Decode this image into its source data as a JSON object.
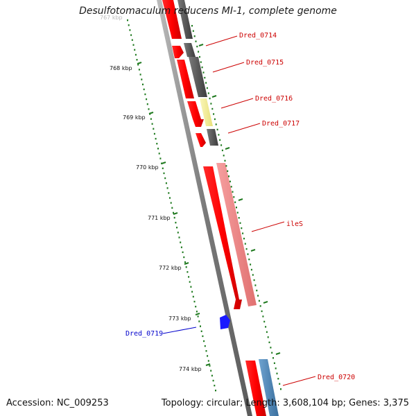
{
  "title": "Desulfotomaculum reducens MI-1, complete genome",
  "footer": {
    "accession": "Accession: NC_009253",
    "summary": "Topology: circular; Length: 3,608,104 bp; Genes: 3,375"
  },
  "colors": {
    "forward_gene": "#ff0000",
    "reverse_gene": "#5a5a5a",
    "ileS": "#f08080",
    "dred_0716": "#f5f09a",
    "dred_0719": "#0000ff",
    "dred_0720_partner": "#4682b4",
    "backbone": "#888888",
    "ticks": "#1f7a1f",
    "label_red": "#cc0000",
    "label_blue": "#0000cc"
  },
  "ticks": [
    {
      "label": "767 kbp"
    },
    {
      "label": "768 kbp"
    },
    {
      "label": "769 kbp"
    },
    {
      "label": "770 kbp"
    },
    {
      "label": "771 kbp"
    },
    {
      "label": "772 kbp"
    },
    {
      "label": "773 kbp"
    },
    {
      "label": "774 kbp"
    }
  ],
  "genes": [
    {
      "name": "Dred_0714",
      "color": "red"
    },
    {
      "name": "Dred_0715",
      "color": "red"
    },
    {
      "name": "Dred_0716",
      "color": "red"
    },
    {
      "name": "Dred_0717",
      "color": "red"
    },
    {
      "name": "ileS",
      "color": "red"
    },
    {
      "name": "Dred_0719",
      "color": "blue"
    },
    {
      "name": "Dred_0720",
      "color": "red"
    }
  ]
}
